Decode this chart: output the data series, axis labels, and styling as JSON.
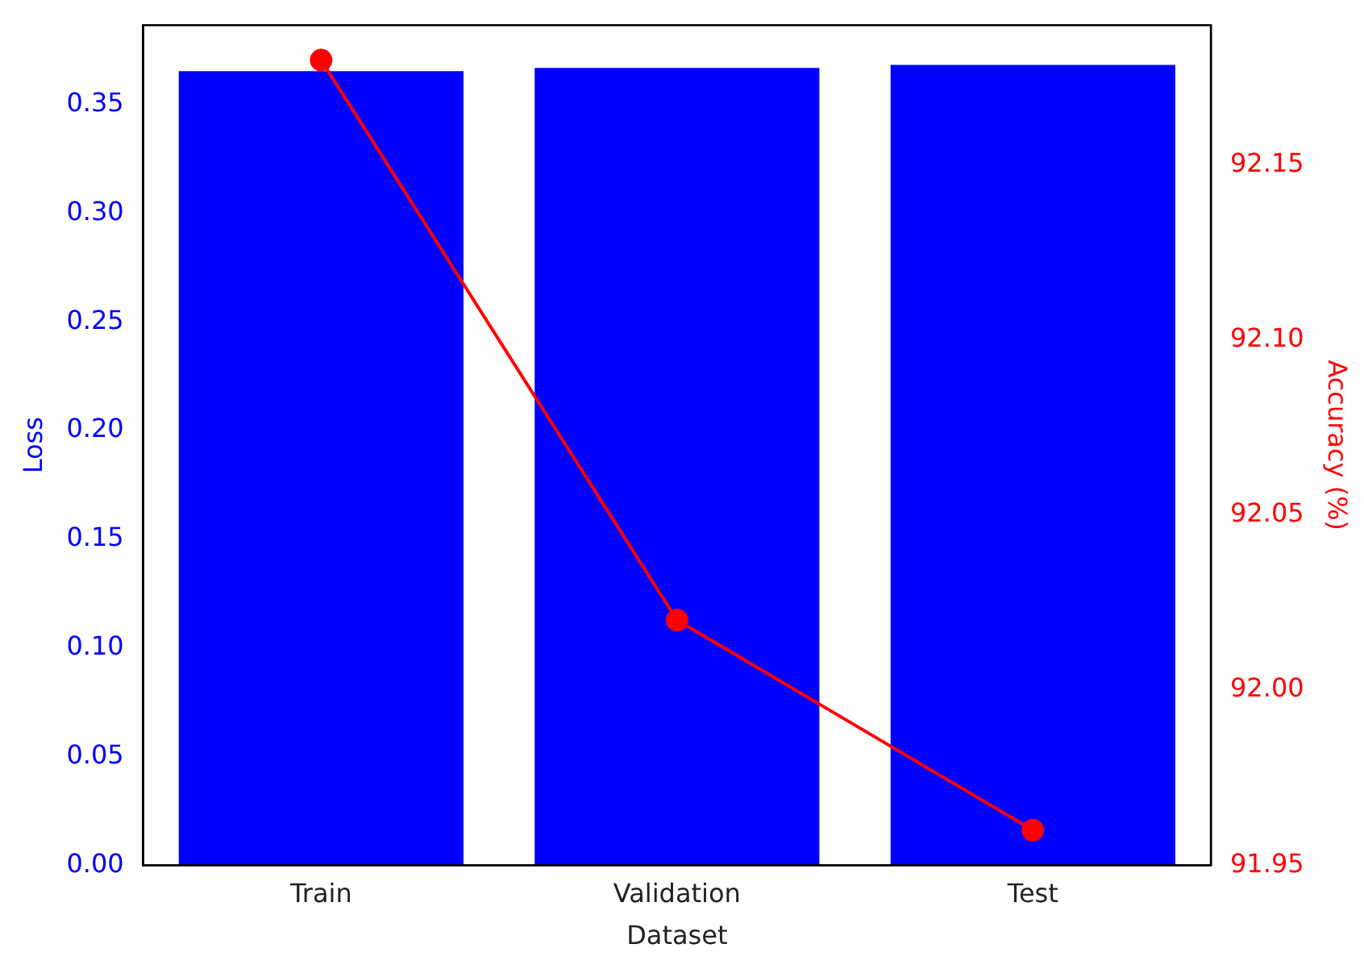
{
  "chart_data": {
    "type": "bar",
    "xlabel": "Dataset",
    "ylabel": "Loss",
    "y2label": "Accuracy (%)",
    "categories": [
      "Train",
      "Validation",
      "Test"
    ],
    "series": [
      {
        "color": "#0000ff",
        "values": [
          0.3653,
          0.3668,
          0.3682
        ]
      },
      {
        "type": "line",
        "axis": "y2",
        "color": "#ff0000",
        "values": [
          92.18,
          92.02,
          91.96
        ]
      }
    ],
    "ylim": [
      0,
      0.3865
    ],
    "yticks": [
      {
        "value": 0,
        "label": "0.00"
      },
      {
        "value": 0.05,
        "label": "0.05"
      },
      {
        "value": 0.1,
        "label": "0.10"
      },
      {
        "value": 0.15,
        "label": "0.15"
      },
      {
        "value": 0.2,
        "label": "0.20"
      },
      {
        "value": 0.25,
        "label": "0.25"
      },
      {
        "value": 0.3,
        "label": "0.30"
      },
      {
        "value": 0.35,
        "label": "0.35"
      }
    ],
    "y2lim": [
      91.95,
      92.19
    ],
    "y2ticks": [
      {
        "value": 91.95,
        "label": "91.95"
      },
      {
        "value": 92.0,
        "label": "92.00"
      },
      {
        "value": 92.05,
        "label": "92.05"
      },
      {
        "value": 92.1,
        "label": "92.10"
      },
      {
        "value": 92.15,
        "label": "92.15"
      }
    ],
    "marker": "circle",
    "grid": false,
    "legend": false
  }
}
